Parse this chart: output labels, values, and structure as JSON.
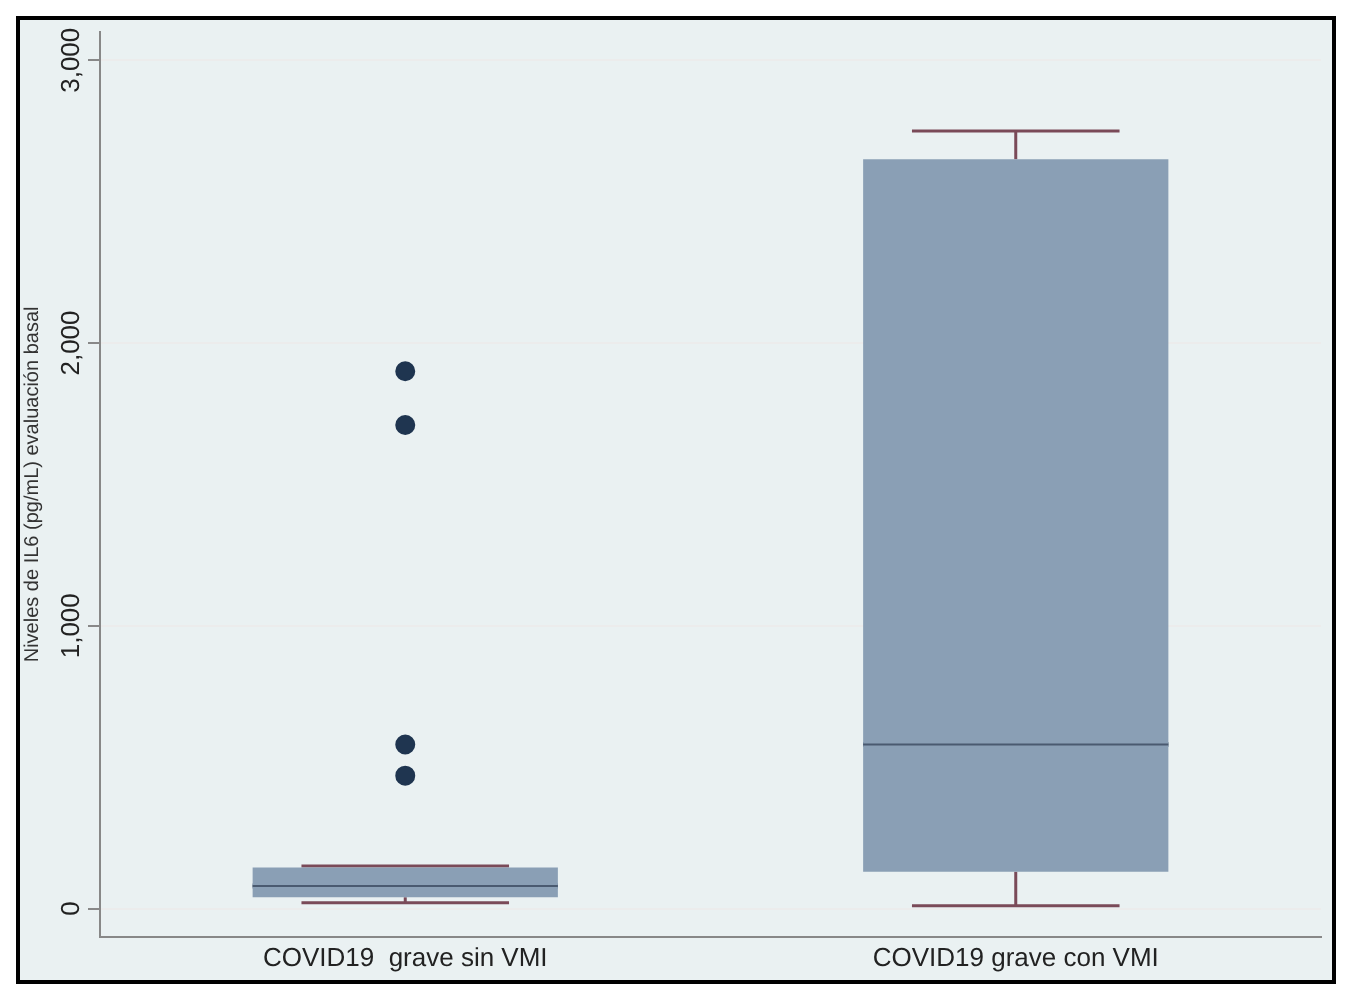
{
  "chart_data": {
    "type": "box",
    "ylabel": "Niveles de IL6 (pg/mL) evaluación basal",
    "categories": [
      "COVID19  grave sin VMI",
      "COVID19 grave con VMI"
    ],
    "color": "#8a9fb5",
    "boxes": [
      {
        "low": 20,
        "q1": 40,
        "median": 80,
        "q3": 145,
        "high": 150,
        "outliers": [
          1900,
          1710,
          580,
          470
        ]
      },
      {
        "low": 10,
        "q1": 130,
        "median": 580,
        "q3": 2650,
        "high": 2750
      }
    ],
    "ylim": [
      -100,
      3100
    ],
    "yticks": [
      {
        "value": 0,
        "label": "0"
      },
      {
        "value": 1000,
        "label": "1,000"
      },
      {
        "value": 2000,
        "label": "2,000"
      },
      {
        "value": 3000,
        "label": "3,000"
      }
    ],
    "grid": "y",
    "legend": false
  }
}
